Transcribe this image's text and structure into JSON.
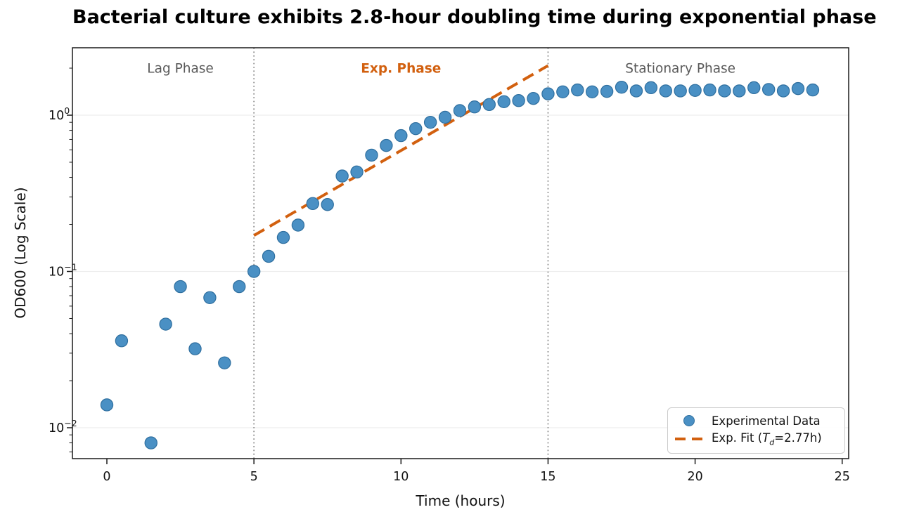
{
  "chart_data": {
    "type": "scatter",
    "title": "Bacterial culture exhibits 2.8-hour doubling time during exponential phase",
    "xlabel": "Time (hours)",
    "ylabel": "OD600 (Log Scale)",
    "x_axis": {
      "ticks": [
        0,
        5,
        10,
        15,
        20,
        25
      ],
      "lim": [
        -1.17,
        25.22
      ]
    },
    "y_axis": {
      "scale": "log",
      "lim": [
        0.0063,
        2.7
      ],
      "ticks": [
        {
          "value": 0.01,
          "base": "10",
          "exp": "−2"
        },
        {
          "value": 0.1,
          "base": "10",
          "exp": "−1"
        },
        {
          "value": 1,
          "base": "10",
          "exp": "0"
        }
      ]
    },
    "grid": {
      "axis": "y",
      "color": "#ededed"
    },
    "phase_boundaries_x": [
      5,
      15
    ],
    "annotations": [
      {
        "text": "Lag Phase",
        "x_hours": 2.5,
        "color": "#595959",
        "bold": false
      },
      {
        "text": "Exp. Phase",
        "x_hours": 10.0,
        "color": "#d2600f",
        "bold": true
      },
      {
        "text": "Stationary Phase",
        "x_hours": 19.5,
        "color": "#595959",
        "bold": false
      }
    ],
    "series": [
      {
        "name": "Experimental Data",
        "type": "scatter",
        "marker_color": "#4a90c4",
        "marker_edge_color": "#2f6f9f",
        "points": [
          [
            0,
            0.014
          ],
          [
            0.5,
            0.036
          ],
          [
            1.5,
            0.008
          ],
          [
            2,
            0.046
          ],
          [
            2.5,
            0.08
          ],
          [
            3,
            0.032
          ],
          [
            3.5,
            0.068
          ],
          [
            4,
            0.026
          ],
          [
            4.5,
            0.08
          ],
          [
            5,
            0.1
          ],
          [
            5.5,
            0.125
          ],
          [
            6,
            0.165
          ],
          [
            6.5,
            0.198
          ],
          [
            7,
            0.272
          ],
          [
            7.5,
            0.268
          ],
          [
            8,
            0.408
          ],
          [
            8.5,
            0.433
          ],
          [
            9,
            0.555
          ],
          [
            9.5,
            0.64
          ],
          [
            10,
            0.74
          ],
          [
            10.5,
            0.82
          ],
          [
            11,
            0.9
          ],
          [
            11.5,
            0.97
          ],
          [
            12,
            1.07
          ],
          [
            12.5,
            1.13
          ],
          [
            13,
            1.17
          ],
          [
            13.5,
            1.22
          ],
          [
            14,
            1.24
          ],
          [
            14.5,
            1.28
          ],
          [
            15,
            1.37
          ],
          [
            15.5,
            1.41
          ],
          [
            16,
            1.45
          ],
          [
            16.5,
            1.41
          ],
          [
            17,
            1.42
          ],
          [
            17.5,
            1.51
          ],
          [
            18,
            1.43
          ],
          [
            18.5,
            1.5
          ],
          [
            19,
            1.43
          ],
          [
            19.5,
            1.43
          ],
          [
            20,
            1.44
          ],
          [
            20.5,
            1.45
          ],
          [
            21,
            1.43
          ],
          [
            21.5,
            1.43
          ],
          [
            22,
            1.5
          ],
          [
            22.5,
            1.46
          ],
          [
            23,
            1.43
          ],
          [
            23.5,
            1.48
          ],
          [
            24,
            1.45
          ]
        ]
      },
      {
        "name": "Exp. Fit (Td=2.77h)",
        "type": "line-dashed",
        "color": "#d2600f",
        "t_start": 5,
        "t_end": 15,
        "v_start": 0.17,
        "doubling_time_h": 2.77
      }
    ],
    "legend": {
      "position": "lower right",
      "entries": [
        {
          "label": "Experimental Data",
          "marker": "circle"
        },
        {
          "label_pre": "Exp. Fit (",
          "label_var": "T",
          "label_sub": "d",
          "label_post": "=2.77h)",
          "marker": "dashes"
        }
      ]
    }
  }
}
